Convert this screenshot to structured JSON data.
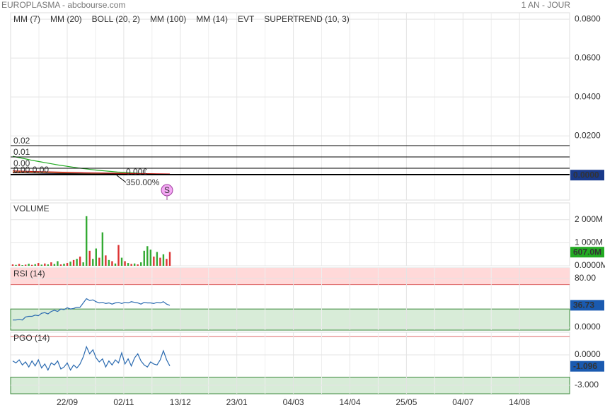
{
  "header": {
    "title": "EUROPLASMA - abcbourse.com",
    "period": "1 AN - JOUR"
  },
  "chart_data": [
    {
      "type": "line",
      "ylim": [
        -0.013,
        0.0833
      ],
      "yticks": [
        {
          "value": 0.08,
          "label": "0.0800"
        },
        {
          "value": 0.06,
          "label": "0.0600"
        },
        {
          "value": 0.04,
          "label": "0.0400"
        },
        {
          "value": 0.02,
          "label": "0.0200"
        }
      ],
      "series": [
        {
          "name": "MM (7)",
          "color": "#3a3aff",
          "values": [
            0.0012,
            0.001,
            0.0008,
            0.0007,
            0.0006,
            0.0005,
            0.0004,
            0.0004,
            0.0003,
            0.0003,
            0.0002,
            0.0002
          ]
        },
        {
          "name": "MM (20)",
          "color": "#e03030",
          "values": [
            0.0014,
            0.0012,
            0.001,
            0.0009,
            0.0008,
            0.0007,
            0.0006,
            0.0005,
            0.0004,
            0.0003,
            0.0003,
            0.0002
          ]
        },
        {
          "name": "BOLL (20, 2)",
          "color": "#f0a050",
          "values": [
            0.0016,
            0.0014,
            0.0012,
            0.001,
            0.0009,
            0.0008,
            0.0007,
            0.0006,
            0.0005,
            0.0004,
            0.0003,
            0.0003
          ]
        },
        {
          "name": "MM (100)",
          "color": "#22aa22",
          "values": [
            0.0095,
            0.0088,
            0.0081,
            0.0074,
            0.0068,
            0.0062,
            0.0056,
            0.005,
            0.0045,
            0.004,
            0.0035,
            0.0031,
            0.0027,
            0.0023,
            0.002,
            0.0017,
            0.0014,
            0.0012,
            0.001,
            0.0008,
            0.0006,
            0.0005,
            0.0004,
            0.0003,
            0.0002
          ]
        },
        {
          "name": "MM (14)",
          "color": "#222222",
          "values": [
            0.001,
            0.0009,
            0.0008,
            0.0007,
            0.0006,
            0.0005,
            0.0004,
            0.0004,
            0.0003,
            0.0003,
            0.0002,
            0.0002
          ]
        },
        {
          "name": "SUPERTREND (10, 3)",
          "color": "#c01010",
          "values": [
            0.002,
            0.0018,
            0.0016,
            0.0014,
            0.0012,
            0.001,
            0.0009,
            0.0008,
            0.0007,
            0.0006,
            0.0005,
            0.0004
          ]
        }
      ],
      "event_legend": "EVT",
      "event": {
        "label": "S",
        "color": "#f4a8f4"
      },
      "levels": [
        "0.02",
        "0.01",
        "0.00",
        "0.00 0.00"
      ],
      "price_label": "0.00€",
      "change_label": "350.00%",
      "last": {
        "value": 0,
        "label": "0.0000",
        "color": "#1a3a8a"
      }
    },
    {
      "type": "bar",
      "title": "VOLUME",
      "title_color": "#22aa22",
      "ylim": [
        0,
        2727
      ],
      "yticks": [
        {
          "value": 2000,
          "label": "2 000M"
        },
        {
          "value": 1000,
          "label": "1 000M"
        },
        {
          "value": 0,
          "label": "0.0000M"
        }
      ],
      "series": [
        {
          "color": "#33aa33",
          "values": [
            null,
            40,
            null,
            30,
            null,
            90,
            null,
            70,
            null,
            50,
            null,
            60,
            null,
            80,
            200,
            null,
            90,
            null,
            180,
            null,
            300,
            null,
            150,
            2150,
            null,
            300,
            750,
            null,
            1450,
            null,
            250,
            null,
            100,
            null,
            350,
            null,
            120,
            null,
            100,
            null,
            150,
            650,
            850,
            700,
            null,
            600,
            null,
            500,
            null,
            null
          ]
        },
        {
          "color": "#dd3333",
          "values": [
            60,
            null,
            80,
            null,
            50,
            null,
            40,
            null,
            120,
            null,
            100,
            null,
            150,
            null,
            null,
            60,
            null,
            120,
            null,
            250,
            null,
            400,
            null,
            null,
            650,
            null,
            null,
            350,
            null,
            450,
            null,
            200,
            null,
            900,
            null,
            200,
            null,
            80,
            null,
            60,
            null,
            null,
            null,
            null,
            400,
            null,
            350,
            null,
            300,
            600
          ]
        }
      ],
      "last": {
        "value": 607,
        "label": "607.0M",
        "color": "#22aa22"
      }
    },
    {
      "type": "line",
      "title": "RSI (14)",
      "title_color": "#2a5db0",
      "ylim": [
        -4.6,
        97.4
      ],
      "yticks": [
        {
          "value": 80,
          "label": "80.00"
        },
        {
          "value": 0,
          "label": "0.0000"
        }
      ],
      "upper_band": 70,
      "lower_band": 30,
      "series": [
        {
          "color": "#2a6ab0",
          "values": [
            12,
            12,
            13,
            12,
            17,
            18,
            18,
            20,
            19,
            23,
            24,
            22,
            26,
            28,
            26,
            30,
            29,
            32,
            30,
            31,
            33,
            33,
            40,
            47,
            44,
            45,
            42,
            40,
            41,
            39,
            40,
            38,
            40,
            41,
            39,
            41,
            40,
            42,
            41,
            40,
            38,
            41,
            40,
            40,
            39,
            41,
            40,
            42,
            38,
            36
          ]
        }
      ],
      "last": {
        "value": 36.73,
        "color": "#1a5ab0"
      }
    },
    {
      "type": "line",
      "title": "PGO (14)",
      "title_color": "#2a5db0",
      "ylim": [
        -3.84,
        2.23
      ],
      "yticks": [
        {
          "value": 0,
          "label": "0.0000"
        },
        {
          "value": -3,
          "label": "-3.000"
        }
      ],
      "upper_band": 1.8,
      "lower_band": -2.2,
      "series": [
        {
          "color": "#2a6ab0",
          "values": [
            -0.6,
            -0.8,
            -0.5,
            -1.0,
            -0.7,
            -1.2,
            -0.6,
            -1.1,
            -0.5,
            -1.3,
            -0.9,
            -1.5,
            -0.8,
            -1.0,
            -0.6,
            -1.4,
            -1.2,
            -0.8,
            -1.5,
            -1.0,
            -1.3,
            -0.9,
            -0.2,
            0.8,
            0.1,
            0.5,
            -0.3,
            -0.7,
            -0.4,
            -1.2,
            -0.6,
            -1.0,
            -0.5,
            -0.8,
            0.2,
            -0.9,
            -0.4,
            -1.1,
            -0.3,
            0.1,
            -0.6,
            -1.0,
            -1.2,
            -0.7,
            -0.9,
            -1.0,
            -0.5,
            0.4,
            -0.5,
            -1.1
          ]
        }
      ],
      "last": {
        "value": -1.096,
        "color": "#1a5ab0"
      },
      "x_labels": [
        "22/09",
        "02/11",
        "13/12",
        "23/01",
        "04/03",
        "14/04",
        "25/05",
        "04/07",
        "14/08"
      ]
    }
  ]
}
